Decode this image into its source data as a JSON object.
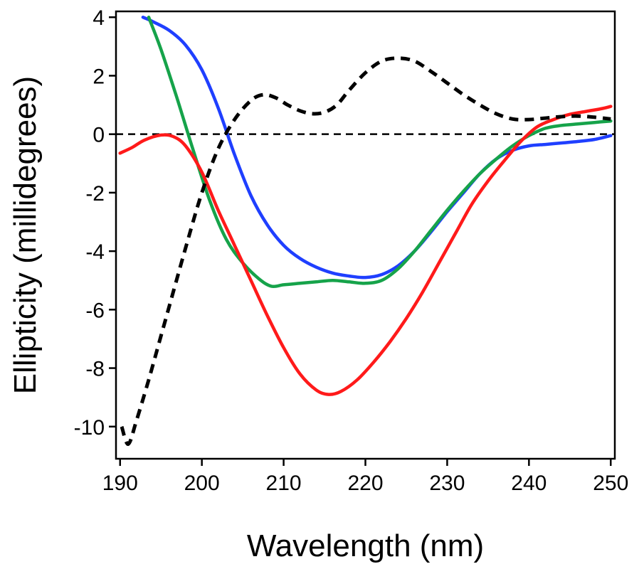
{
  "chart_data": {
    "type": "line",
    "title": "",
    "xlabel": "Wavelength (nm)",
    "ylabel": "Ellipticity (millidegrees)",
    "xlim": [
      189.5,
      250.5
    ],
    "ylim": [
      -11.1,
      4.2
    ],
    "xticks": [
      190,
      200,
      210,
      220,
      230,
      240,
      250
    ],
    "yticks": [
      -10,
      -8,
      -6,
      -4,
      -2,
      0,
      2,
      4
    ],
    "grid": false,
    "legend": "none",
    "reference_line": {
      "y": 0,
      "style": "dashed",
      "color": "#000000"
    },
    "series": [
      {
        "color": "#1f3fff",
        "style": "solid",
        "points": [
          [
            192.8,
            4.0
          ],
          [
            194,
            3.85
          ],
          [
            196,
            3.55
          ],
          [
            198,
            3.05
          ],
          [
            200,
            2.2
          ],
          [
            202,
            0.9
          ],
          [
            204,
            -0.7
          ],
          [
            206,
            -2.1
          ],
          [
            208,
            -3.1
          ],
          [
            210,
            -3.8
          ],
          [
            212,
            -4.25
          ],
          [
            214,
            -4.55
          ],
          [
            216,
            -4.75
          ],
          [
            218,
            -4.85
          ],
          [
            220,
            -4.9
          ],
          [
            222,
            -4.8
          ],
          [
            224,
            -4.5
          ],
          [
            226,
            -4.0
          ],
          [
            228,
            -3.35
          ],
          [
            230,
            -2.65
          ],
          [
            232,
            -2.0
          ],
          [
            234,
            -1.35
          ],
          [
            236,
            -0.85
          ],
          [
            238,
            -0.55
          ],
          [
            240,
            -0.4
          ],
          [
            242,
            -0.35
          ],
          [
            244,
            -0.3
          ],
          [
            246,
            -0.25
          ],
          [
            248,
            -0.18
          ],
          [
            250,
            -0.05
          ]
        ]
      },
      {
        "color": "#16a34a",
        "style": "solid",
        "points": [
          [
            193.5,
            4.0
          ],
          [
            195,
            2.9
          ],
          [
            197,
            1.2
          ],
          [
            199,
            -0.6
          ],
          [
            201,
            -2.3
          ],
          [
            203,
            -3.6
          ],
          [
            205,
            -4.4
          ],
          [
            207,
            -4.95
          ],
          [
            208.5,
            -5.2
          ],
          [
            210,
            -5.15
          ],
          [
            212,
            -5.1
          ],
          [
            214,
            -5.05
          ],
          [
            216,
            -5.0
          ],
          [
            218,
            -5.05
          ],
          [
            220,
            -5.1
          ],
          [
            222,
            -5.0
          ],
          [
            224,
            -4.6
          ],
          [
            226,
            -4.0
          ],
          [
            228,
            -3.3
          ],
          [
            230,
            -2.6
          ],
          [
            232,
            -1.95
          ],
          [
            234,
            -1.35
          ],
          [
            236,
            -0.85
          ],
          [
            238,
            -0.4
          ],
          [
            240,
            -0.05
          ],
          [
            242,
            0.2
          ],
          [
            244,
            0.3
          ],
          [
            246,
            0.35
          ],
          [
            248,
            0.4
          ],
          [
            250,
            0.45
          ]
        ]
      },
      {
        "color": "#ff1a1a",
        "style": "solid",
        "points": [
          [
            190,
            -0.65
          ],
          [
            191.5,
            -0.45
          ],
          [
            193,
            -0.2
          ],
          [
            195,
            -0.03
          ],
          [
            196.5,
            -0.08
          ],
          [
            198,
            -0.4
          ],
          [
            200,
            -1.3
          ],
          [
            202,
            -2.6
          ],
          [
            204,
            -3.8
          ],
          [
            206,
            -5.0
          ],
          [
            208,
            -6.2
          ],
          [
            210,
            -7.3
          ],
          [
            212,
            -8.2
          ],
          [
            214,
            -8.75
          ],
          [
            215.5,
            -8.9
          ],
          [
            217,
            -8.8
          ],
          [
            219,
            -8.4
          ],
          [
            221,
            -7.8
          ],
          [
            223,
            -7.1
          ],
          [
            225,
            -6.3
          ],
          [
            227,
            -5.4
          ],
          [
            229,
            -4.4
          ],
          [
            231,
            -3.4
          ],
          [
            233,
            -2.4
          ],
          [
            235,
            -1.6
          ],
          [
            237,
            -0.9
          ],
          [
            239,
            -0.25
          ],
          [
            241,
            0.25
          ],
          [
            243,
            0.5
          ],
          [
            245,
            0.68
          ],
          [
            247,
            0.78
          ],
          [
            249,
            0.88
          ],
          [
            250,
            0.95
          ]
        ]
      },
      {
        "color": "#000000",
        "style": "dashed",
        "points": [
          [
            190.2,
            -10.0
          ],
          [
            191,
            -10.6
          ],
          [
            192,
            -9.8
          ],
          [
            193.5,
            -8.4
          ],
          [
            195,
            -6.9
          ],
          [
            196.5,
            -5.4
          ],
          [
            198,
            -3.9
          ],
          [
            200,
            -2.0
          ],
          [
            202,
            -0.5
          ],
          [
            204,
            0.5
          ],
          [
            206,
            1.15
          ],
          [
            207.5,
            1.35
          ],
          [
            209,
            1.25
          ],
          [
            210.5,
            1.0
          ],
          [
            212,
            0.8
          ],
          [
            213.5,
            0.7
          ],
          [
            215,
            0.75
          ],
          [
            216.5,
            1.0
          ],
          [
            218,
            1.5
          ],
          [
            220,
            2.1
          ],
          [
            222,
            2.5
          ],
          [
            224,
            2.6
          ],
          [
            226,
            2.5
          ],
          [
            228,
            2.15
          ],
          [
            230,
            1.75
          ],
          [
            232,
            1.35
          ],
          [
            234,
            1.0
          ],
          [
            236,
            0.7
          ],
          [
            238,
            0.52
          ],
          [
            240,
            0.5
          ],
          [
            242,
            0.55
          ],
          [
            244,
            0.6
          ],
          [
            246,
            0.62
          ],
          [
            248,
            0.58
          ],
          [
            250,
            0.52
          ]
        ]
      }
    ]
  }
}
